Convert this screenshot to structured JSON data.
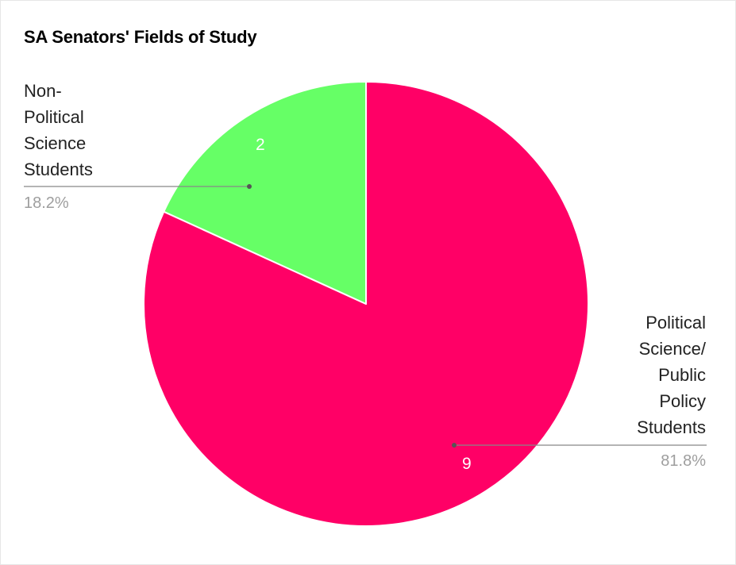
{
  "chart_data": {
    "type": "pie",
    "title": "SA Senators' Fields of Study",
    "slices": [
      {
        "label": "Political Science/ Public Policy Students",
        "label_lines": [
          "Political",
          "Science/",
          "Public",
          "Policy",
          "Students"
        ],
        "value": 9,
        "value_label": "9",
        "percent_label": "81.8%",
        "color": "#ff0066"
      },
      {
        "label": "Non-Political Science Students",
        "label_lines": [
          "Non-",
          "Political",
          "Science",
          "Students"
        ],
        "value": 2,
        "value_label": "2",
        "percent_label": "18.2%",
        "color": "#66ff66"
      }
    ],
    "start_angle_deg": 0,
    "direction": "clockwise",
    "legend": "none",
    "label_style": "callout"
  }
}
